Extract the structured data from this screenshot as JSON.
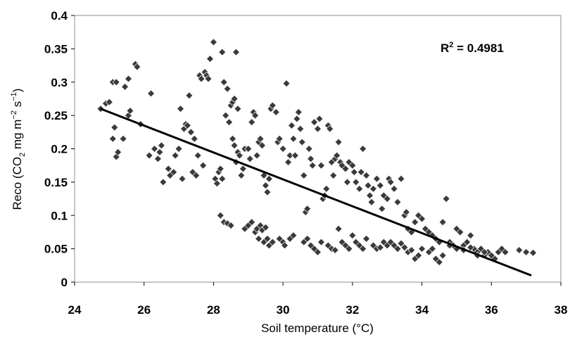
{
  "chart_data": {
    "type": "scatter",
    "title": "",
    "xlabel": "Soil temperature (°C)",
    "ylabel": {
      "prefix": "Reco (CO",
      "sub": "2",
      "mid1": " mg m",
      "sup1": "−2",
      "mid2": " s",
      "sup2": "−1",
      "suffix": ")"
    },
    "annotation": {
      "base": "R",
      "sup": "2",
      "rest": " = 0.4981"
    },
    "xlim": [
      24,
      38
    ],
    "ylim": [
      0,
      0.4
    ],
    "xticks": [
      "24",
      "26",
      "28",
      "30",
      "32",
      "34",
      "36",
      "38"
    ],
    "yticks": [
      "0",
      "0.05",
      "0.1",
      "0.15",
      "0.2",
      "0.25",
      "0.3",
      "0.35",
      "0.4"
    ],
    "grid": false,
    "marker": "diamond",
    "marker_color": "#3a3a3a",
    "trendline": {
      "x": [
        24.75,
        37.15
      ],
      "y": [
        0.26,
        0.01
      ],
      "color": "#000000"
    },
    "points": [
      [
        24.75,
        0.26
      ],
      [
        24.9,
        0.268
      ],
      [
        25.0,
        0.27
      ],
      [
        25.1,
        0.3
      ],
      [
        25.2,
        0.3
      ],
      [
        25.1,
        0.215
      ],
      [
        25.15,
        0.232
      ],
      [
        25.2,
        0.188
      ],
      [
        25.25,
        0.195
      ],
      [
        25.4,
        0.215
      ],
      [
        25.45,
        0.293
      ],
      [
        25.55,
        0.25
      ],
      [
        25.6,
        0.257
      ],
      [
        25.55,
        0.305
      ],
      [
        25.75,
        0.327
      ],
      [
        25.8,
        0.323
      ],
      [
        25.9,
        0.237
      ],
      [
        26.2,
        0.283
      ],
      [
        26.15,
        0.19
      ],
      [
        26.3,
        0.2
      ],
      [
        26.4,
        0.185
      ],
      [
        26.5,
        0.205
      ],
      [
        26.45,
        0.195
      ],
      [
        26.55,
        0.15
      ],
      [
        26.7,
        0.17
      ],
      [
        26.75,
        0.16
      ],
      [
        26.85,
        0.165
      ],
      [
        26.9,
        0.19
      ],
      [
        27.0,
        0.2
      ],
      [
        27.05,
        0.26
      ],
      [
        27.1,
        0.155
      ],
      [
        27.15,
        0.23
      ],
      [
        27.2,
        0.237
      ],
      [
        27.25,
        0.235
      ],
      [
        27.3,
        0.28
      ],
      [
        27.35,
        0.225
      ],
      [
        27.4,
        0.165
      ],
      [
        27.45,
        0.215
      ],
      [
        27.5,
        0.16
      ],
      [
        27.55,
        0.19
      ],
      [
        27.6,
        0.31
      ],
      [
        27.65,
        0.305
      ],
      [
        27.75,
        0.315
      ],
      [
        27.8,
        0.31
      ],
      [
        27.85,
        0.305
      ],
      [
        27.7,
        0.175
      ],
      [
        27.9,
        0.335
      ],
      [
        28.0,
        0.36
      ],
      [
        28.05,
        0.155
      ],
      [
        28.1,
        0.148
      ],
      [
        28.15,
        0.165
      ],
      [
        28.2,
        0.17
      ],
      [
        28.25,
        0.155
      ],
      [
        28.3,
        0.3
      ],
      [
        28.25,
        0.345
      ],
      [
        28.4,
        0.29
      ],
      [
        28.35,
        0.25
      ],
      [
        28.45,
        0.24
      ],
      [
        28.5,
        0.265
      ],
      [
        28.55,
        0.27
      ],
      [
        28.6,
        0.275
      ],
      [
        28.65,
        0.345
      ],
      [
        28.7,
        0.26
      ],
      [
        28.55,
        0.215
      ],
      [
        28.6,
        0.205
      ],
      [
        28.65,
        0.18
      ],
      [
        28.7,
        0.195
      ],
      [
        28.75,
        0.19
      ],
      [
        28.8,
        0.16
      ],
      [
        28.85,
        0.17
      ],
      [
        28.9,
        0.2
      ],
      [
        29.0,
        0.2
      ],
      [
        29.05,
        0.185
      ],
      [
        29.1,
        0.24
      ],
      [
        29.15,
        0.255
      ],
      [
        29.2,
        0.25
      ],
      [
        29.25,
        0.19
      ],
      [
        29.3,
        0.21
      ],
      [
        29.35,
        0.215
      ],
      [
        29.4,
        0.205
      ],
      [
        29.45,
        0.16
      ],
      [
        29.5,
        0.145
      ],
      [
        29.55,
        0.135
      ],
      [
        29.6,
        0.155
      ],
      [
        29.65,
        0.26
      ],
      [
        29.7,
        0.265
      ],
      [
        29.8,
        0.255
      ],
      [
        29.85,
        0.21
      ],
      [
        29.9,
        0.215
      ],
      [
        30.0,
        0.2
      ],
      [
        30.1,
        0.298
      ],
      [
        30.15,
        0.18
      ],
      [
        30.2,
        0.19
      ],
      [
        30.25,
        0.235
      ],
      [
        30.3,
        0.215
      ],
      [
        30.35,
        0.19
      ],
      [
        30.4,
        0.245
      ],
      [
        30.45,
        0.255
      ],
      [
        30.5,
        0.23
      ],
      [
        30.55,
        0.21
      ],
      [
        30.6,
        0.16
      ],
      [
        30.65,
        0.105
      ],
      [
        30.7,
        0.11
      ],
      [
        30.75,
        0.2
      ],
      [
        30.8,
        0.185
      ],
      [
        30.85,
        0.175
      ],
      [
        30.9,
        0.24
      ],
      [
        31.0,
        0.23
      ],
      [
        31.05,
        0.245
      ],
      [
        31.1,
        0.175
      ],
      [
        31.15,
        0.125
      ],
      [
        31.2,
        0.13
      ],
      [
        31.25,
        0.14
      ],
      [
        31.3,
        0.235
      ],
      [
        31.35,
        0.23
      ],
      [
        31.4,
        0.18
      ],
      [
        31.45,
        0.16
      ],
      [
        31.5,
        0.185
      ],
      [
        31.55,
        0.19
      ],
      [
        31.6,
        0.21
      ],
      [
        31.65,
        0.18
      ],
      [
        31.7,
        0.175
      ],
      [
        31.8,
        0.17
      ],
      [
        31.85,
        0.15
      ],
      [
        31.9,
        0.18
      ],
      [
        32.0,
        0.175
      ],
      [
        32.05,
        0.165
      ],
      [
        32.1,
        0.15
      ],
      [
        32.2,
        0.14
      ],
      [
        32.25,
        0.165
      ],
      [
        32.3,
        0.2
      ],
      [
        32.4,
        0.16
      ],
      [
        32.45,
        0.145
      ],
      [
        32.5,
        0.13
      ],
      [
        32.55,
        0.12
      ],
      [
        32.6,
        0.14
      ],
      [
        32.7,
        0.155
      ],
      [
        32.8,
        0.145
      ],
      [
        32.85,
        0.11
      ],
      [
        32.9,
        0.13
      ],
      [
        33.0,
        0.125
      ],
      [
        33.05,
        0.155
      ],
      [
        33.1,
        0.15
      ],
      [
        33.2,
        0.14
      ],
      [
        33.3,
        0.12
      ],
      [
        33.4,
        0.155
      ],
      [
        33.5,
        0.1
      ],
      [
        33.55,
        0.105
      ],
      [
        33.6,
        0.08
      ],
      [
        33.7,
        0.075
      ],
      [
        33.8,
        0.09
      ],
      [
        33.9,
        0.1
      ],
      [
        34.0,
        0.095
      ],
      [
        34.1,
        0.08
      ],
      [
        34.2,
        0.075
      ],
      [
        34.3,
        0.07
      ],
      [
        34.4,
        0.065
      ],
      [
        34.5,
        0.06
      ],
      [
        34.6,
        0.09
      ],
      [
        34.7,
        0.125
      ],
      [
        34.8,
        0.06
      ],
      [
        34.9,
        0.055
      ],
      [
        35.0,
        0.08
      ],
      [
        35.1,
        0.075
      ],
      [
        35.2,
        0.055
      ],
      [
        35.3,
        0.06
      ],
      [
        35.4,
        0.07
      ],
      [
        35.5,
        0.05
      ],
      [
        35.6,
        0.045
      ],
      [
        35.7,
        0.05
      ],
      [
        35.8,
        0.04
      ],
      [
        35.9,
        0.045
      ],
      [
        36.0,
        0.04
      ],
      [
        36.1,
        0.035
      ],
      [
        36.2,
        0.045
      ],
      [
        36.3,
        0.05
      ],
      [
        36.4,
        0.045
      ],
      [
        36.8,
        0.048
      ],
      [
        37.0,
        0.045
      ],
      [
        37.2,
        0.044
      ],
      [
        28.2,
        0.1
      ],
      [
        28.3,
        0.09
      ],
      [
        28.4,
        0.088
      ],
      [
        28.5,
        0.085
      ],
      [
        28.9,
        0.08
      ],
      [
        29.0,
        0.085
      ],
      [
        29.1,
        0.09
      ],
      [
        29.2,
        0.075
      ],
      [
        29.25,
        0.08
      ],
      [
        29.3,
        0.065
      ],
      [
        29.35,
        0.085
      ],
      [
        29.4,
        0.078
      ],
      [
        29.45,
        0.06
      ],
      [
        29.5,
        0.082
      ],
      [
        29.55,
        0.065
      ],
      [
        29.6,
        0.055
      ],
      [
        29.7,
        0.06
      ],
      [
        29.9,
        0.065
      ],
      [
        30.0,
        0.06
      ],
      [
        30.05,
        0.055
      ],
      [
        30.2,
        0.065
      ],
      [
        30.3,
        0.07
      ],
      [
        30.6,
        0.06
      ],
      [
        30.7,
        0.065
      ],
      [
        30.8,
        0.055
      ],
      [
        30.9,
        0.05
      ],
      [
        31.0,
        0.045
      ],
      [
        31.1,
        0.06
      ],
      [
        31.3,
        0.055
      ],
      [
        31.4,
        0.05
      ],
      [
        31.5,
        0.048
      ],
      [
        31.6,
        0.08
      ],
      [
        31.7,
        0.06
      ],
      [
        31.8,
        0.055
      ],
      [
        31.9,
        0.05
      ],
      [
        32.0,
        0.07
      ],
      [
        32.1,
        0.06
      ],
      [
        32.2,
        0.055
      ],
      [
        32.3,
        0.05
      ],
      [
        32.4,
        0.065
      ],
      [
        32.6,
        0.055
      ],
      [
        32.7,
        0.05
      ],
      [
        32.8,
        0.052
      ],
      [
        32.9,
        0.06
      ],
      [
        33.0,
        0.055
      ],
      [
        33.1,
        0.06
      ],
      [
        33.2,
        0.055
      ],
      [
        33.3,
        0.05
      ],
      [
        33.4,
        0.058
      ],
      [
        33.5,
        0.052
      ],
      [
        33.6,
        0.045
      ],
      [
        33.7,
        0.048
      ],
      [
        33.8,
        0.035
      ],
      [
        33.9,
        0.04
      ],
      [
        34.0,
        0.05
      ],
      [
        34.2,
        0.045
      ],
      [
        34.3,
        0.05
      ],
      [
        34.4,
        0.035
      ],
      [
        34.5,
        0.03
      ],
      [
        34.6,
        0.04
      ],
      [
        34.8,
        0.055
      ],
      [
        35.0,
        0.05
      ],
      [
        35.2,
        0.048
      ],
      [
        35.4,
        0.052
      ],
      [
        35.6,
        0.04
      ],
      [
        35.8,
        0.045
      ],
      [
        36.0,
        0.04
      ]
    ]
  }
}
